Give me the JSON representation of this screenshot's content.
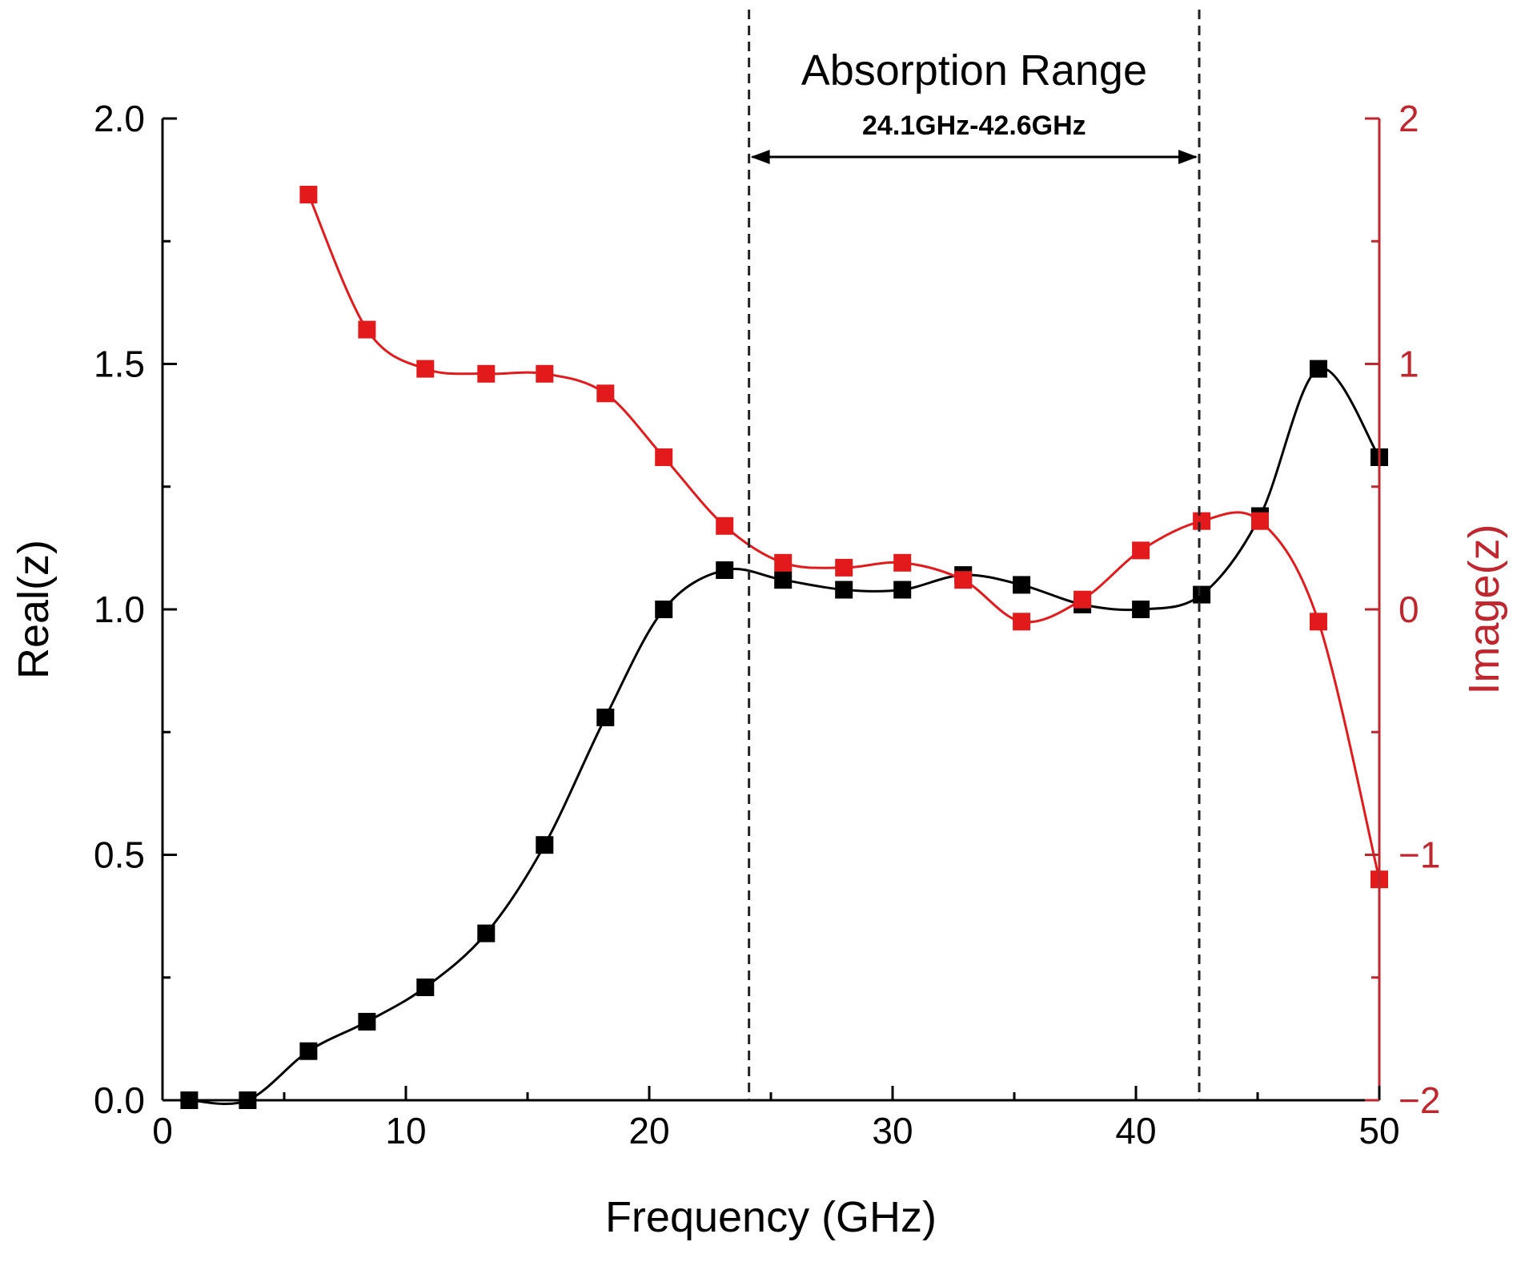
{
  "chart_data": {
    "type": "line",
    "title": "",
    "xlabel": "Frequency (GHz)",
    "ylabel": "Real(z)",
    "y2label": "Image(z)",
    "xlim": [
      0,
      50
    ],
    "ylim": [
      0,
      2
    ],
    "y2lim": [
      -2,
      2
    ],
    "x_ticks": [
      0,
      10,
      20,
      30,
      40,
      50
    ],
    "x_tick_labels": [
      "0",
      "10",
      "20",
      "30",
      "40",
      "50"
    ],
    "y_ticks": [
      0,
      0.5,
      1,
      1.5,
      2
    ],
    "y_tick_labels": [
      "0.0",
      "0.5",
      "1.0",
      "1.5",
      "2.0"
    ],
    "y2_ticks": [
      -2,
      -1,
      0,
      1,
      2
    ],
    "y2_tick_labels": [
      "−2",
      "−1",
      "0",
      "1",
      "2"
    ],
    "grid": false,
    "series": [
      {
        "name": "Real(z)",
        "axis": "left",
        "color": "#000000",
        "x": [
          1.1,
          3.5,
          6.0,
          8.4,
          10.8,
          13.3,
          15.7,
          18.2,
          20.6,
          23.1,
          25.5,
          28.0,
          30.4,
          32.9,
          35.3,
          37.8,
          40.2,
          42.7,
          45.1,
          47.5,
          50.0
        ],
        "y": [
          0.0,
          0.0,
          0.1,
          0.16,
          0.23,
          0.34,
          0.52,
          0.78,
          1.0,
          1.08,
          1.06,
          1.04,
          1.04,
          1.07,
          1.05,
          1.01,
          1.0,
          1.03,
          1.19,
          1.49,
          1.31
        ]
      },
      {
        "name": "Image(z)",
        "axis": "right",
        "color": "#e31a1c",
        "x": [
          6.0,
          8.4,
          10.8,
          13.3,
          15.7,
          18.2,
          20.6,
          23.1,
          25.5,
          28.0,
          30.4,
          32.9,
          35.3,
          37.8,
          40.2,
          42.7,
          45.1,
          47.5,
          50.0
        ],
        "y": [
          1.69,
          1.14,
          0.98,
          0.96,
          0.96,
          0.88,
          0.62,
          0.34,
          0.19,
          0.17,
          0.19,
          0.12,
          -0.05,
          0.04,
          0.24,
          0.36,
          0.36,
          -0.05,
          -1.1
        ]
      }
    ],
    "annotations": {
      "title": "Absorption Range",
      "range_label": "24.1GHz-42.6GHz",
      "range": [
        24.1,
        42.6
      ]
    },
    "colors": {
      "left_axis": "#000000",
      "right_axis": "#c0262e"
    }
  }
}
